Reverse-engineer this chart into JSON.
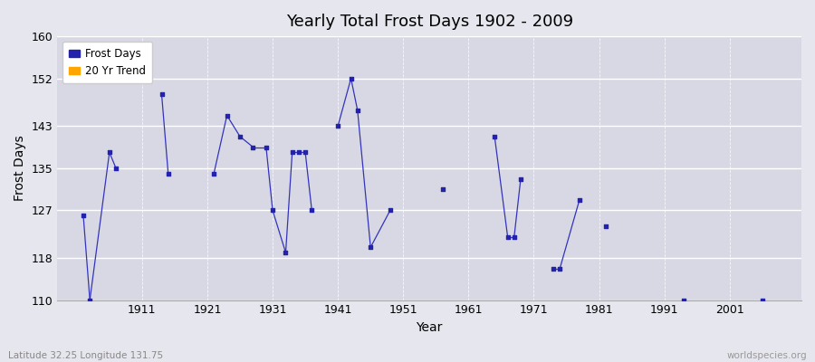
{
  "title": "Yearly Total Frost Days 1902 - 2009",
  "xlabel": "Year",
  "ylabel": "Frost Days",
  "lat_lon_label": "Latitude 32.25 Longitude 131.75",
  "source_label": "worldspecies.org",
  "ylim": [
    110,
    160
  ],
  "yticks": [
    110,
    118,
    127,
    135,
    143,
    152,
    160
  ],
  "xticks": [
    1911,
    1921,
    1931,
    1941,
    1951,
    1961,
    1971,
    1981,
    1991,
    2001
  ],
  "xlim": [
    1898,
    2012
  ],
  "line_color": "#3333bb",
  "marker_color": "#2222aa",
  "bg_color": "#e6e6ee",
  "plot_bg_color": "#d8d8e4",
  "grid_color": "#ffffff",
  "legend_frost_color": "#2222aa",
  "legend_trend_color": "#ffa500",
  "data": [
    [
      1902,
      126
    ],
    [
      1903,
      110
    ],
    [
      1906,
      138
    ],
    [
      1907,
      135
    ],
    [
      1914,
      149
    ],
    [
      1915,
      134
    ],
    [
      1922,
      134
    ],
    [
      1924,
      145
    ],
    [
      1926,
      141
    ],
    [
      1928,
      139
    ],
    [
      1930,
      139
    ],
    [
      1931,
      127
    ],
    [
      1933,
      119
    ],
    [
      1934,
      138
    ],
    [
      1935,
      138
    ],
    [
      1936,
      138
    ],
    [
      1937,
      127
    ],
    [
      1941,
      143
    ],
    [
      1943,
      152
    ],
    [
      1944,
      146
    ],
    [
      1946,
      120
    ],
    [
      1949,
      127
    ],
    [
      1957,
      131
    ],
    [
      1965,
      141
    ],
    [
      1967,
      122
    ],
    [
      1968,
      122
    ],
    [
      1969,
      133
    ],
    [
      1974,
      116
    ],
    [
      1975,
      116
    ],
    [
      1978,
      129
    ],
    [
      1982,
      124
    ],
    [
      1994,
      110
    ],
    [
      2006,
      110
    ]
  ]
}
